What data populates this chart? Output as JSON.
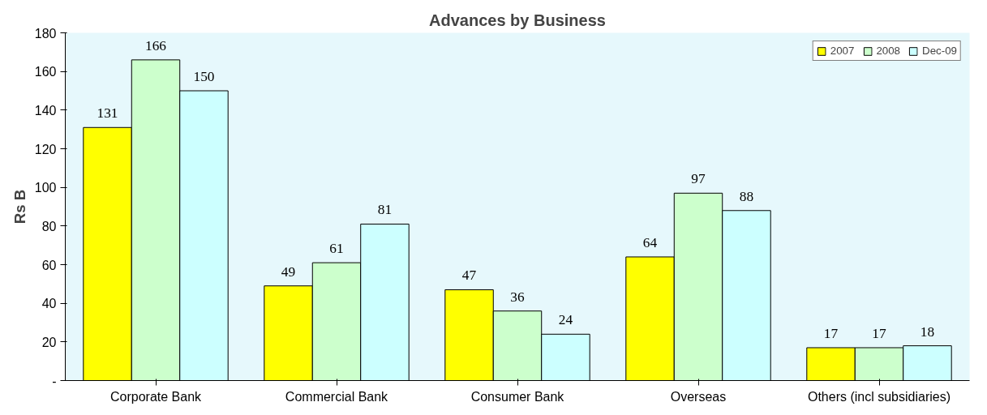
{
  "chart_data": {
    "type": "bar",
    "title": "Advances by Business",
    "ylabel": "Rs B",
    "categories": [
      "Corporate Bank",
      "Commercial Bank",
      "Consumer Bank",
      "Overseas",
      "Others (incl subsidiaries)"
    ],
    "series": [
      {
        "name": "2007",
        "color": "#ffff00",
        "values": [
          131,
          49,
          47,
          64,
          17
        ]
      },
      {
        "name": "2008",
        "color": "#ccffcc",
        "values": [
          166,
          61,
          36,
          97,
          17
        ]
      },
      {
        "name": "Dec-09",
        "color": "#ccffff",
        "values": [
          150,
          81,
          24,
          88,
          18
        ]
      }
    ],
    "ylim": [
      0,
      180
    ],
    "yticks": [
      {
        "value": 0,
        "label": "-"
      },
      20,
      40,
      60,
      80,
      100,
      120,
      140,
      160,
      180
    ],
    "data_labels": true,
    "grid": false,
    "legend": "top right"
  }
}
